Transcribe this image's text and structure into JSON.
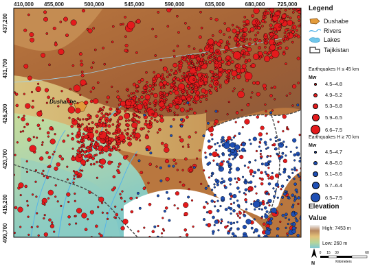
{
  "map": {
    "x_ticks": [
      "410,000",
      "455,000",
      "500,000",
      "545,000",
      "590,000",
      "635,000",
      "680,000",
      "725,000"
    ],
    "y_ticks": [
      "437,200",
      "431,700",
      "426,200",
      "420,700",
      "415,200",
      "409,700"
    ],
    "city_label": "Dushanbe",
    "scale": {
      "labels": [
        "0",
        "15",
        "30",
        "60"
      ],
      "unit": "Kilometers"
    },
    "north_label": "N"
  },
  "legend": {
    "title": "Legend",
    "items": [
      {
        "label": "Dushabe",
        "icon": "city-icon",
        "color": "#e39b3b"
      },
      {
        "label": "Rivers",
        "icon": "river-icon",
        "color": "#56b4e9"
      },
      {
        "label": "Lakes",
        "icon": "lake-icon",
        "color": "#6fc6ea"
      },
      {
        "label": "Tajikistan",
        "icon": "border-icon",
        "color": "#333333"
      }
    ],
    "shallow": {
      "title": "Earthquakes H ≤ 45 km",
      "mw": "Mw",
      "color": "#e41a1c",
      "classes": [
        "4.5–4.8",
        "4.9–5.2",
        "5.3–5.8",
        "5.9–6.5",
        "6.6–7.5"
      ]
    },
    "deep": {
      "title": "Earthquakes H ≥ 70 km",
      "mw": "Mw",
      "color": "#1f4fb4",
      "classes": [
        "4.5–4.7",
        "4.8–5.0",
        "5.1–5.6",
        "5.7–6.4",
        "6.5–7.5"
      ]
    },
    "elevation": {
      "title": "Elevation",
      "subtitle": "Value",
      "high": "High: 7453 m",
      "low": "Low: 260 m"
    }
  }
}
